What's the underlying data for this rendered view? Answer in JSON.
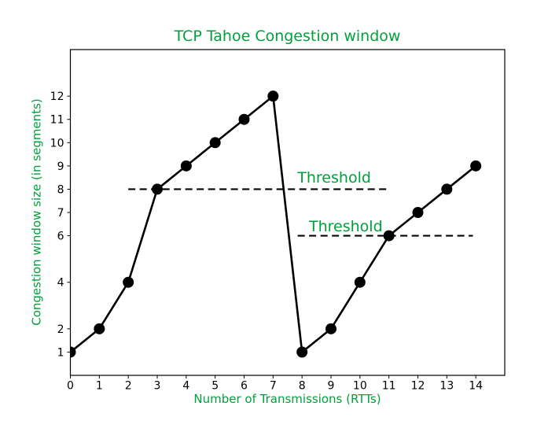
{
  "figure": {
    "background_color": "#ffffff",
    "accent_green": "#00A03C",
    "line_color": "#000000",
    "axis_color": "#000000"
  },
  "chart_data": {
    "type": "line",
    "title": "TCP Tahoe Congestion window",
    "xlabel": "Number of Transmissions (RTTs)",
    "ylabel": "Congestion window size (in segments)",
    "x": [
      0,
      1,
      2,
      3,
      4,
      5,
      6,
      7,
      8,
      9,
      10,
      11,
      12,
      13,
      14
    ],
    "y": [
      1,
      2,
      4,
      8,
      9,
      10,
      11,
      12,
      1,
      2,
      4,
      6,
      7,
      8,
      9
    ],
    "xlim": [
      0,
      15
    ],
    "ylim": [
      0,
      14
    ],
    "xticks": [
      0,
      1,
      2,
      3,
      4,
      5,
      6,
      7,
      8,
      9,
      10,
      11,
      12,
      13,
      14
    ],
    "yticks": [
      1,
      2,
      4,
      6,
      7,
      8,
      9,
      10,
      11,
      12
    ],
    "grid": false,
    "legend": null,
    "marker": "circle",
    "line_color": "#000000",
    "marker_color": "#000000",
    "annotations": [
      {
        "label": "Threshold",
        "y": 8,
        "x_start": 2,
        "x_end": 11,
        "style": "dashed",
        "color": "#000000",
        "label_color": "#00A03C",
        "label_x": 7.84,
        "label_y": 8.28
      },
      {
        "label": "Threshold",
        "y": 6,
        "x_start": 7.85,
        "x_end": 13.9,
        "style": "dashed",
        "color": "#000000",
        "label_color": "#00A03C",
        "label_x": 8.24,
        "label_y": 6.19
      }
    ]
  }
}
